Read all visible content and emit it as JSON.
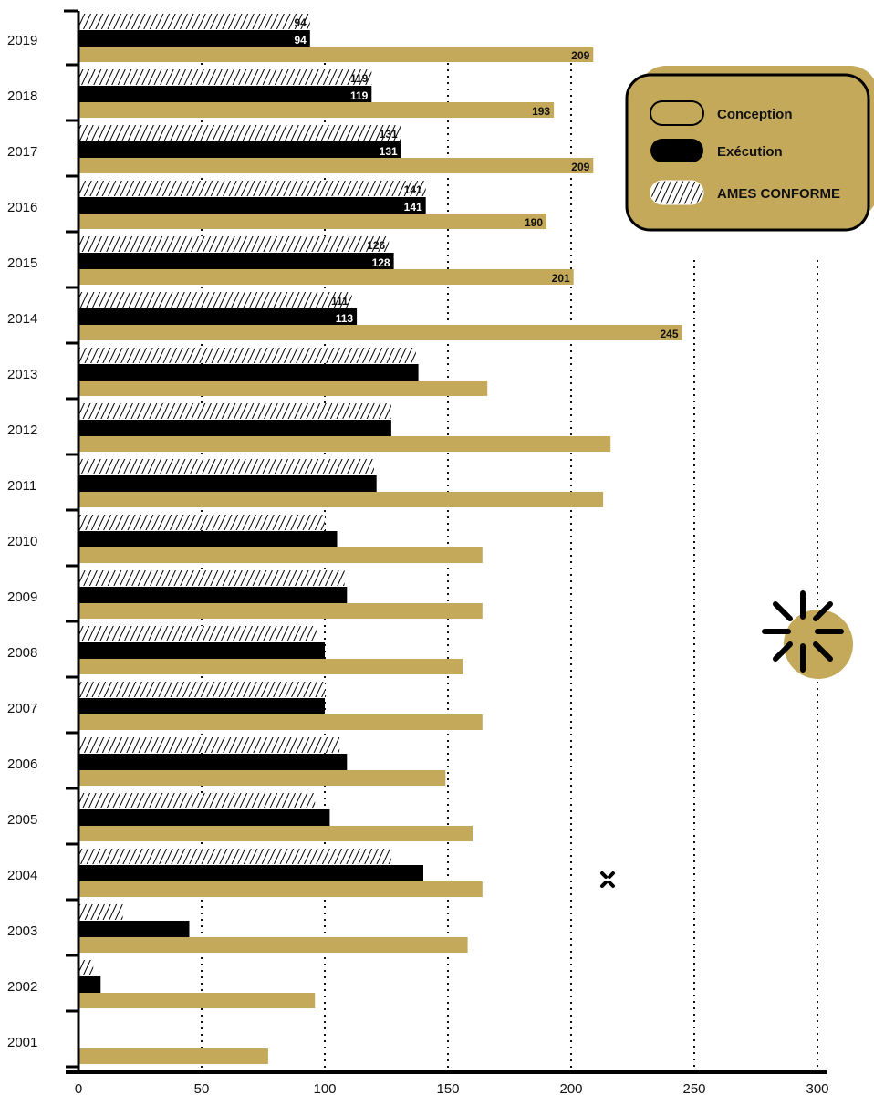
{
  "chart_data": {
    "type": "bar",
    "orientation": "horizontal",
    "title": "",
    "xlabel": "",
    "ylabel": "",
    "xlim": [
      0,
      300
    ],
    "x_ticks": [
      0,
      50,
      100,
      150,
      200,
      250,
      300
    ],
    "grid": "dotted vertical gridlines",
    "legend_position": "top-right",
    "categories": [
      "2019",
      "2018",
      "2017",
      "2016",
      "2015",
      "2014",
      "2013",
      "2012",
      "2011",
      "2010",
      "2009",
      "2008",
      "2007",
      "2006",
      "2005",
      "2004",
      "2003",
      "2002",
      "2001"
    ],
    "series": [
      {
        "name": "AMES CONFORME",
        "style": "hatched",
        "values": [
          94,
          119,
          131,
          141,
          126,
          111,
          137,
          127,
          120,
          100,
          108,
          97,
          100,
          106,
          96,
          127,
          18,
          6,
          0
        ],
        "labels": [
          "94",
          "119",
          "131",
          "141",
          "126",
          "111",
          "",
          "",
          "",
          "",
          "",
          "",
          "",
          "",
          "",
          "",
          "",
          "",
          ""
        ]
      },
      {
        "name": "Exécution",
        "style": "solid-black",
        "values": [
          94,
          119,
          131,
          141,
          128,
          113,
          138,
          127,
          121,
          105,
          109,
          100,
          100,
          109,
          102,
          140,
          45,
          9,
          0
        ],
        "labels": [
          "94",
          "119",
          "131",
          "141",
          "128",
          "113",
          "",
          "",
          "",
          "",
          "",
          "",
          "",
          "",
          "",
          "",
          "",
          "",
          ""
        ]
      },
      {
        "name": "Conception",
        "style": "gold",
        "values": [
          209,
          193,
          209,
          190,
          201,
          245,
          166,
          216,
          213,
          164,
          164,
          156,
          164,
          149,
          160,
          164,
          158,
          96,
          77
        ],
        "labels": [
          "209",
          "193",
          "209",
          "190",
          "201",
          "245",
          "",
          "",
          "",
          "",
          "",
          "",
          "",
          "",
          "",
          "",
          "",
          "",
          ""
        ]
      }
    ],
    "legend": {
      "items": [
        {
          "label": "Conception",
          "swatch": "outline"
        },
        {
          "label": "Exécution",
          "swatch": "solid-black"
        },
        {
          "label": "AMES CONFORME",
          "swatch": "hatched"
        }
      ]
    },
    "colors": {
      "gold": "#c4a95a",
      "black": "#000000",
      "grid": "#111111"
    }
  }
}
